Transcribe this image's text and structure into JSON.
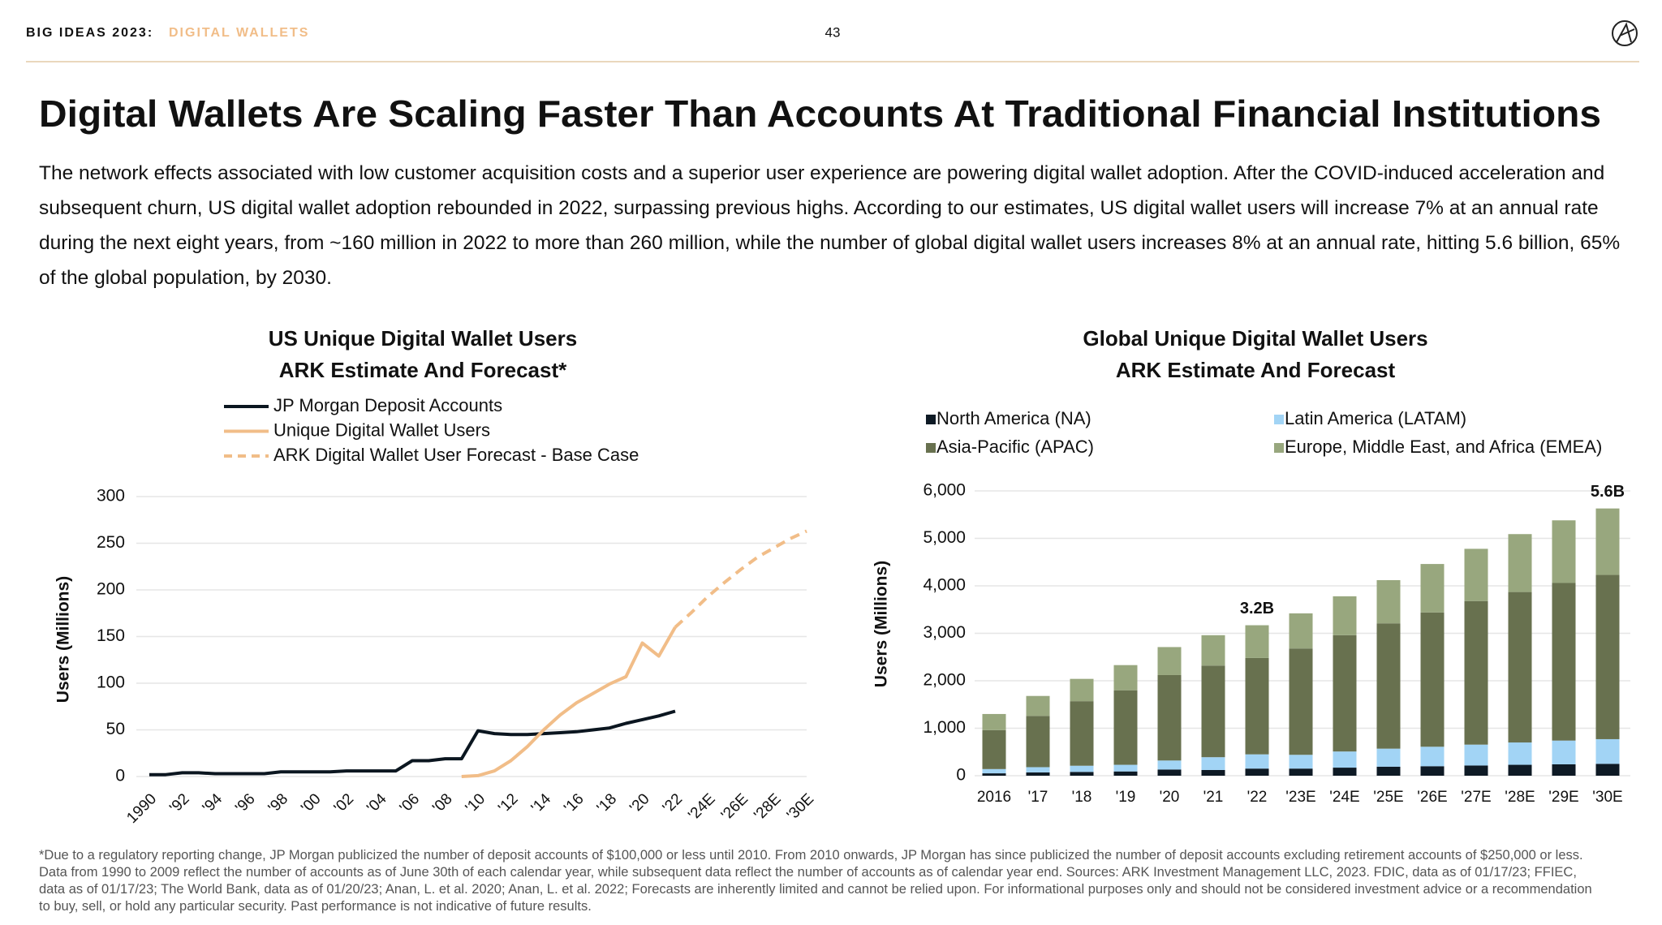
{
  "header": {
    "label": "BIG IDEAS 2023:",
    "topic": "DIGITAL WALLETS",
    "page": "43"
  },
  "title": "Digital Wallets Are Scaling Faster Than Accounts At Traditional Financial Institutions",
  "body": "The network effects associated with low customer acquisition costs and a superior user experience are powering digital wallet adoption. After the COVID-induced acceleration and subsequent churn, US digital wallet adoption rebounded in 2022, surpassing previous highs. According to our estimates, US digital wallet users will increase 7% at an annual rate during the next eight years, from ~160 million in 2022 to more than 260 million, while the number of global digital wallet users increases 8% at an annual rate, hitting 5.6 billion, 65% of the global population, by 2030.",
  "footnote": "*Due to a regulatory reporting change, JP Morgan publicized the number of deposit accounts of $100,000 or less until 2010. From 2010 onwards, JP Morgan has since publicized the number of deposit accounts excluding retirement accounts of $250,000 or less. Data from 1990 to 2009 reflect the number of accounts as of June 30th of each calendar year, while subsequent data reflect the number of accounts as of calendar year end. Sources: ARK Investment Management LLC, 2023. FDIC, data as of 01/17/23; FFIEC, data as of 01/17/23; The World Bank, data as of 01/20/23; Anan, L. et al. 2020; Anan, L. et al. 2022; Forecasts are inherently limited and cannot be relied upon. For informational purposes only and should not be considered investment advice or a recommendation to buy, sell, or hold any particular security. Past performance is not indicative of future results.",
  "chart_data": [
    {
      "type": "line",
      "title": "US Unique Digital Wallet Users",
      "subtitle": "ARK Estimate And Forecast*",
      "y_label": "Users (Millions)",
      "categories": [
        "1990",
        null,
        "'92",
        null,
        "'94",
        null,
        "'96",
        null,
        "'98",
        null,
        "'00",
        null,
        "'02",
        null,
        "'04",
        null,
        "'06",
        null,
        "'08",
        null,
        "'10",
        null,
        "'12",
        null,
        "'14",
        null,
        "'16",
        null,
        "'18",
        null,
        "'20",
        null,
        "'22",
        null,
        "'24E",
        null,
        "'26E",
        null,
        "'28E",
        null,
        "'30E"
      ],
      "series": [
        {
          "name": "JP Morgan Deposit Accounts",
          "color": "#0b1620",
          "dash": false,
          "values": [
            2,
            2,
            4,
            4,
            3,
            3,
            3,
            3,
            5,
            5,
            5,
            5,
            6,
            6,
            6,
            6,
            17,
            17,
            19,
            19,
            49,
            46,
            45,
            45,
            46,
            47,
            48,
            50,
            52,
            57,
            61,
            65,
            70,
            null,
            null,
            null,
            null,
            null,
            null,
            null,
            null
          ]
        },
        {
          "name": "Unique Digital Wallet Users",
          "color": "#f1bd88",
          "dash": false,
          "values": [
            null,
            null,
            null,
            null,
            null,
            null,
            null,
            null,
            null,
            null,
            null,
            null,
            null,
            null,
            null,
            null,
            null,
            null,
            null,
            0,
            1,
            6,
            17,
            32,
            50,
            66,
            79,
            89,
            99,
            107,
            143,
            129,
            160,
            null,
            null,
            null,
            null,
            null,
            null,
            null,
            null
          ]
        },
        {
          "name": "ARK Digital Wallet User Forecast - Base Case",
          "color": "#f1bd88",
          "dash": true,
          "values": [
            null,
            null,
            null,
            null,
            null,
            null,
            null,
            null,
            null,
            null,
            null,
            null,
            null,
            null,
            null,
            null,
            null,
            null,
            null,
            null,
            null,
            null,
            null,
            null,
            null,
            null,
            null,
            null,
            null,
            null,
            null,
            null,
            160,
            176,
            193,
            208,
            222,
            235,
            245,
            255,
            263
          ]
        }
      ],
      "ylim": [
        0,
        300
      ],
      "yticks": [
        0,
        50,
        100,
        150,
        200,
        250,
        300
      ],
      "grid": true
    },
    {
      "type": "stacked_bar",
      "title": "Global Unique Digital Wallet Users",
      "subtitle": "ARK Estimate And Forecast",
      "y_label": "Users (Millions)",
      "categories": [
        "2016",
        "'17",
        "'18",
        "'19",
        "'20",
        "'21",
        "'22",
        "'23E",
        "'24E",
        "'25E",
        "'26E",
        "'27E",
        "'28E",
        "'29E",
        "'30E"
      ],
      "series": [
        {
          "name": "North America (NA)",
          "color": "#0e1a25",
          "values": [
            50,
            70,
            80,
            90,
            130,
            120,
            150,
            150,
            170,
            190,
            200,
            215,
            230,
            240,
            250
          ]
        },
        {
          "name": "Latin America (LATAM)",
          "color": "#a2d4f5",
          "values": [
            90,
            110,
            130,
            140,
            190,
            270,
            300,
            290,
            340,
            380,
            410,
            440,
            470,
            500,
            520
          ]
        },
        {
          "name": "Asia-Pacific (APAC)",
          "color": "#68714f",
          "values": [
            820,
            1080,
            1360,
            1570,
            1800,
            1930,
            2030,
            2240,
            2450,
            2640,
            2830,
            3025,
            3170,
            3320,
            3460
          ]
        },
        {
          "name": "Europe, Middle East, and Africa (EMEA)",
          "color": "#98a77e",
          "values": [
            340,
            420,
            470,
            530,
            590,
            640,
            690,
            740,
            820,
            910,
            1020,
            1100,
            1220,
            1320,
            1400
          ]
        }
      ],
      "annotations": [
        {
          "x": "'22",
          "text": "3.2B"
        },
        {
          "x": "'30E",
          "text": "5.6B"
        }
      ],
      "ylim": [
        0,
        6000
      ],
      "yticks": [
        0,
        {
          "value": 1000,
          "label": "1,000"
        },
        {
          "value": 2000,
          "label": "2,000"
        },
        {
          "value": 3000,
          "label": "3,000"
        },
        {
          "value": 4000,
          "label": "4,000"
        },
        {
          "value": 5000,
          "label": "5,000"
        },
        {
          "value": 6000,
          "label": "6,000"
        }
      ],
      "grid": true
    }
  ]
}
